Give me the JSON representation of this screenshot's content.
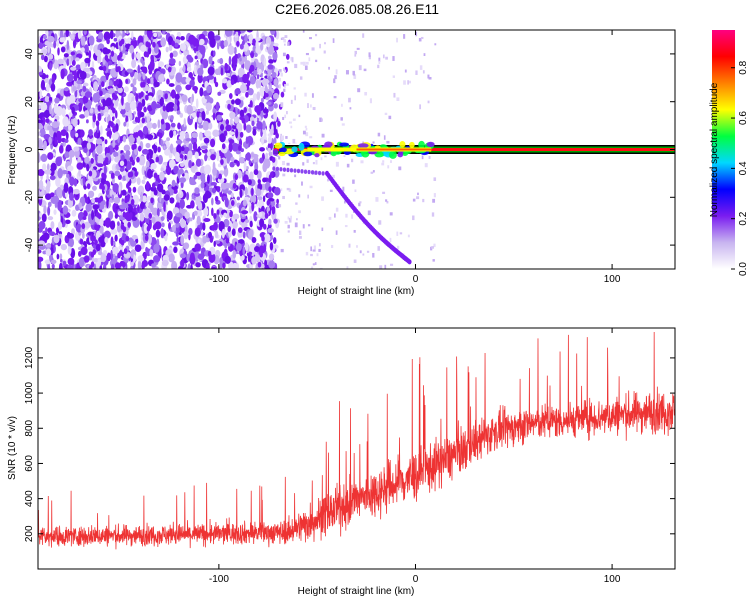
{
  "figure": {
    "title": "C2E6.2026.085.08.26.E11"
  },
  "colorbar": {
    "label": "Normalized spectral amplitude",
    "ticks": [
      "0.0",
      "0.2",
      "0.4",
      "0.6",
      "0.8"
    ],
    "tick_values": [
      0.0,
      0.2,
      0.4,
      0.6,
      0.8
    ],
    "range": [
      0,
      0.95
    ],
    "colors": [
      "#ffffff",
      "#c8b4f0",
      "#7a1cf0",
      "#0000ff",
      "#00d8ff",
      "#00ff40",
      "#ffff00",
      "#ff8000",
      "#ff0000",
      "#ff0080"
    ]
  },
  "chart_data": [
    {
      "type": "heatmap",
      "title": "",
      "xlabel": "Height of straight line (km)",
      "ylabel": "Frequency (Hz)",
      "xlim": [
        -192,
        132
      ],
      "ylim": [
        -50,
        50
      ],
      "x_ticks": [
        -100,
        0,
        100
      ],
      "x_tick_labels": [
        "-100",
        "0",
        "100"
      ],
      "y_ticks": [
        -40,
        -20,
        0,
        20,
        40
      ],
      "y_tick_labels": [
        "-40",
        "-20",
        "0",
        "20",
        "40"
      ],
      "features": {
        "noise_region_x": [
          -192,
          -70
        ],
        "scatter_region_x": [
          -70,
          10
        ],
        "center_line_freq": 0,
        "center_line_x": [
          -72,
          132
        ],
        "sweep_x": [
          -45,
          -3
        ],
        "sweep_freq": [
          -10,
          -47
        ]
      }
    },
    {
      "type": "line",
      "title": "",
      "xlabel": "Height of straight line (km)",
      "ylabel": "SNR (10 * v/v)",
      "xlim": [
        -192,
        132
      ],
      "ylim": [
        0,
        1370
      ],
      "x_ticks": [
        -100,
        0,
        100
      ],
      "x_tick_labels": [
        "-100",
        "0",
        "100"
      ],
      "y_ticks": [
        200,
        400,
        600,
        800,
        1000,
        1200
      ],
      "y_tick_labels": [
        "200",
        "400",
        "600",
        "800",
        "1000",
        "1200"
      ],
      "series": [
        {
          "color": "#ee3333",
          "trend": {
            "x": [
              -192,
              -150,
              -100,
              -65,
              -55,
              -40,
              -20,
              0,
              20,
              40,
              60,
              80,
              100,
              115,
              132
            ],
            "mean": [
              185,
              190,
              200,
              210,
              260,
              340,
              440,
              530,
              650,
              780,
              830,
              850,
              870,
              890,
              900
            ],
            "spread": [
              70,
              70,
              75,
              80,
              130,
              150,
              170,
              180,
              160,
              130,
              120,
              120,
              130,
              140,
              150
            ]
          }
        }
      ]
    }
  ]
}
